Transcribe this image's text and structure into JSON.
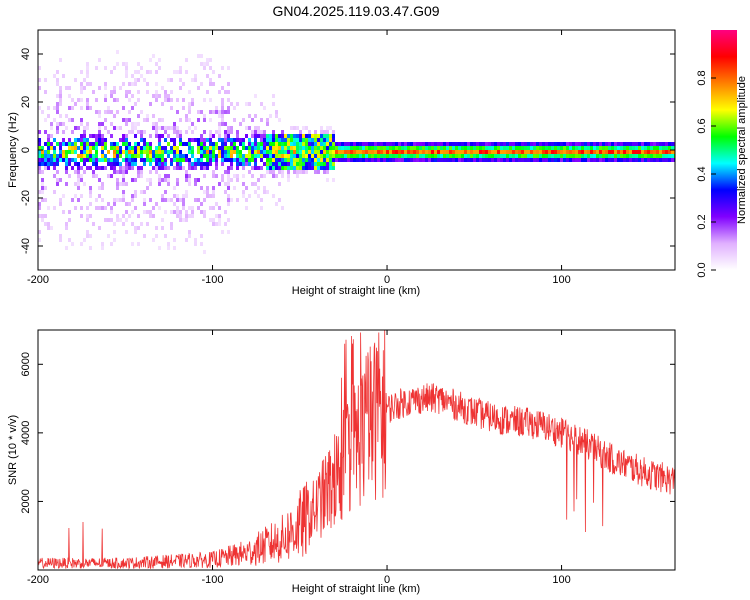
{
  "title": "GN04.2025.119.03.47.G09",
  "chart_data": [
    {
      "type": "heatmap",
      "xlabel": "Height of straight line (km)",
      "ylabel": "Frequency (Hz)",
      "xlim": [
        -200,
        165
      ],
      "ylim": [
        -50,
        50
      ],
      "x_ticks": [
        -200,
        -100,
        0,
        100
      ],
      "y_ticks": [
        -40,
        -20,
        0,
        20,
        40
      ],
      "colorbar": {
        "label": "Normalized spectral amplitude",
        "range": [
          0,
          1
        ],
        "ticks": [
          "0.0",
          "0.2",
          "0.4",
          "0.6",
          "0.8"
        ],
        "colors": [
          "#ffffff",
          "#e0b0ff",
          "#8000ff",
          "#0000ff",
          "#00ffff",
          "#00ff00",
          "#ffff00",
          "#ff8000",
          "#ff0000",
          "#ff0080"
        ]
      },
      "ridge": {
        "description": "dominant frequency near 0 Hz",
        "x_start": -200,
        "x_end": 165,
        "freq": 0
      }
    },
    {
      "type": "line",
      "xlabel": "Height of straight line (km)",
      "ylabel": "SNR (10 * v/v)",
      "xlim": [
        -200,
        165
      ],
      "ylim": [
        0,
        7000
      ],
      "x_ticks": [
        -200,
        -100,
        0,
        100
      ],
      "y_ticks": [
        2000,
        4000,
        6000
      ],
      "series": [
        {
          "color": "#ee3333",
          "envelope": {
            "x": [
              -200,
              -150,
              -100,
              -80,
              -60,
              -45,
              -30,
              -20,
              -10,
              0,
              10,
              20,
              30,
              40,
              50,
              60,
              70,
              80,
              90,
              100,
              110,
              120,
              130,
              140,
              150,
              165
            ],
            "y": [
              200,
              200,
              300,
              500,
              900,
              1500,
              2600,
              3600,
              4300,
              4700,
              4900,
              5000,
              5000,
              4800,
              4600,
              4450,
              4350,
              4300,
              4200,
              4000,
              3800,
              3500,
              3200,
              3000,
              2800,
              2600
            ]
          }
        }
      ]
    }
  ]
}
